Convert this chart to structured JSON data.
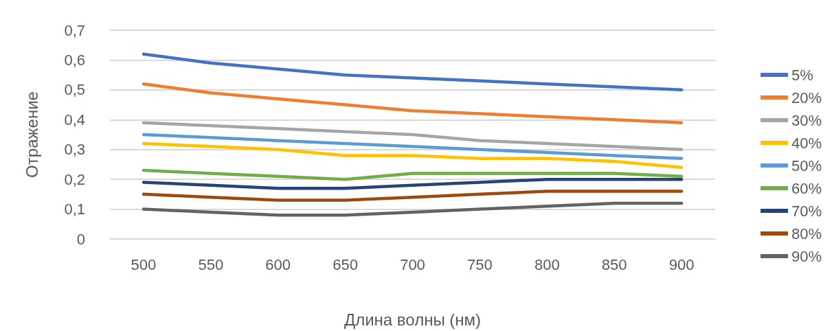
{
  "chart_data": {
    "type": "line",
    "xlabel": "Длина волны (нм)",
    "ylabel": "Отражение",
    "categories": [
      "500",
      "550",
      "600",
      "650",
      "700",
      "750",
      "800",
      "850",
      "900"
    ],
    "ylim": [
      0,
      0.7
    ],
    "yticks": [
      {
        "value": 0,
        "label": "0"
      },
      {
        "value": 0.1,
        "label": "0,1"
      },
      {
        "value": 0.2,
        "label": "0,2"
      },
      {
        "value": 0.3,
        "label": "0,3"
      },
      {
        "value": 0.4,
        "label": "0,4"
      },
      {
        "value": 0.5,
        "label": "0,5"
      },
      {
        "value": 0.6,
        "label": "0,6"
      },
      {
        "value": 0.7,
        "label": "0,7"
      }
    ],
    "grid": "y",
    "legend": "right",
    "marker": "none",
    "line_style": "solid",
    "series": [
      {
        "name": "5%",
        "color": "#4472c4",
        "values": [
          0.62,
          0.59,
          0.57,
          0.55,
          0.54,
          0.53,
          0.52,
          0.51,
          0.5
        ]
      },
      {
        "name": "20%",
        "color": "#ed7d31",
        "values": [
          0.52,
          0.49,
          0.47,
          0.45,
          0.43,
          0.42,
          0.41,
          0.4,
          0.39
        ]
      },
      {
        "name": "30%",
        "color": "#a5a5a5",
        "values": [
          0.39,
          0.38,
          0.37,
          0.36,
          0.35,
          0.33,
          0.32,
          0.31,
          0.3
        ]
      },
      {
        "name": "40%",
        "color": "#ffc000",
        "values": [
          0.32,
          0.31,
          0.3,
          0.28,
          0.28,
          0.27,
          0.27,
          0.26,
          0.24
        ]
      },
      {
        "name": "50%",
        "color": "#5b9bd5",
        "values": [
          0.35,
          0.34,
          0.33,
          0.32,
          0.31,
          0.3,
          0.29,
          0.28,
          0.27
        ]
      },
      {
        "name": "60%",
        "color": "#70ad47",
        "values": [
          0.23,
          0.22,
          0.21,
          0.2,
          0.22,
          0.22,
          0.22,
          0.22,
          0.21
        ]
      },
      {
        "name": "70%",
        "color": "#264478",
        "values": [
          0.19,
          0.18,
          0.17,
          0.17,
          0.18,
          0.19,
          0.2,
          0.2,
          0.2
        ]
      },
      {
        "name": "80%",
        "color": "#9e480e",
        "values": [
          0.15,
          0.14,
          0.13,
          0.13,
          0.14,
          0.15,
          0.16,
          0.16,
          0.16
        ]
      },
      {
        "name": "90%",
        "color": "#636363",
        "values": [
          0.1,
          0.09,
          0.08,
          0.08,
          0.09,
          0.1,
          0.11,
          0.12,
          0.12
        ]
      }
    ]
  }
}
